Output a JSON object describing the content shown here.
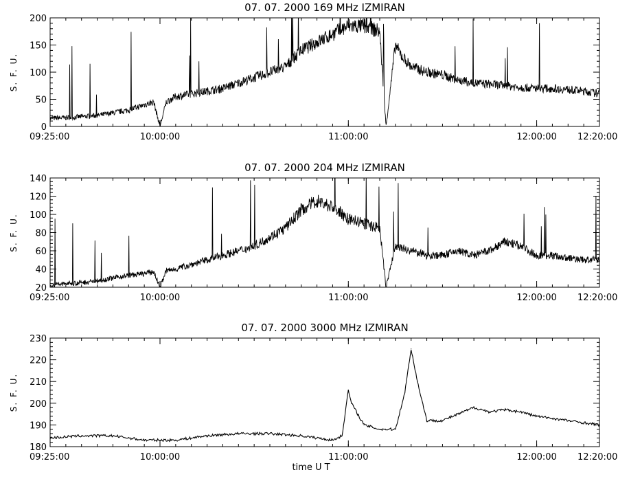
{
  "chart_data": [
    {
      "type": "line",
      "title": "07.  07.  2000      169 MHz    IZMIRAN",
      "ylabel": "S. F. U.",
      "xlabel": "",
      "x_range": [
        "09:25:00",
        "12:20:00"
      ],
      "ylim": [
        0,
        200
      ],
      "yticks": [
        "0",
        "50",
        "100",
        "150",
        "200"
      ],
      "xticks": [
        "09:25:00",
        "10:00:00",
        "11:00:00",
        "12:00:00",
        "12:20:00"
      ],
      "grid": false,
      "series": [
        {
          "x": [
            "09:25",
            "09:30",
            "09:35",
            "09:40",
            "09:45",
            "09:50",
            "09:55",
            "09:58",
            "10:00",
            "10:02",
            "10:05",
            "10:10",
            "10:15",
            "10:20",
            "10:25",
            "10:30",
            "10:35",
            "10:40",
            "10:45",
            "10:50",
            "10:55",
            "11:00",
            "11:05",
            "11:10",
            "11:12",
            "11:15",
            "11:17",
            "11:20",
            "11:25",
            "11:30",
            "11:35",
            "11:40",
            "11:45",
            "11:50",
            "11:55",
            "12:00",
            "12:05",
            "12:10",
            "12:15",
            "12:20"
          ],
          "values": [
            15,
            16,
            18,
            20,
            25,
            30,
            40,
            45,
            0,
            45,
            55,
            60,
            65,
            70,
            80,
            90,
            100,
            110,
            140,
            155,
            170,
            185,
            185,
            175,
            0,
            150,
            130,
            110,
            100,
            95,
            85,
            80,
            78,
            75,
            72,
            70,
            70,
            68,
            65,
            60
          ]
        }
      ]
    },
    {
      "type": "line",
      "title": "07.  07.  2000      204 MHz    IZMIRAN",
      "ylabel": "S. F. U.",
      "xlabel": "",
      "x_range": [
        "09:25:00",
        "12:20:00"
      ],
      "ylim": [
        20,
        140
      ],
      "yticks": [
        "20",
        "40",
        "60",
        "80",
        "100",
        "120",
        "140"
      ],
      "xticks": [
        "09:25:00",
        "10:00:00",
        "11:00:00",
        "12:00:00",
        "12:20:00"
      ],
      "grid": false,
      "series": [
        {
          "x": [
            "09:25",
            "09:30",
            "09:35",
            "09:40",
            "09:45",
            "09:50",
            "09:55",
            "09:58",
            "10:00",
            "10:02",
            "10:05",
            "10:10",
            "10:15",
            "10:20",
            "10:25",
            "10:30",
            "10:35",
            "10:40",
            "10:45",
            "10:50",
            "10:55",
            "11:00",
            "11:05",
            "11:10",
            "11:12",
            "11:15",
            "11:20",
            "11:25",
            "11:30",
            "11:35",
            "11:40",
            "11:45",
            "11:50",
            "11:55",
            "12:00",
            "12:05",
            "12:10",
            "12:15",
            "12:20"
          ],
          "values": [
            22,
            24,
            25,
            27,
            30,
            33,
            35,
            37,
            20,
            38,
            40,
            45,
            50,
            55,
            60,
            65,
            75,
            85,
            105,
            115,
            108,
            95,
            90,
            85,
            20,
            65,
            60,
            55,
            55,
            60,
            55,
            60,
            70,
            65,
            55,
            55,
            52,
            50,
            50
          ]
        }
      ]
    },
    {
      "type": "line",
      "title": "07.  07.  2000      3000 MHz    IZMIRAN",
      "ylabel": "S. F. U.",
      "xlabel": "time  U T",
      "x_range": [
        "09:25:00",
        "12:20:00"
      ],
      "ylim": [
        180,
        230
      ],
      "yticks": [
        "180",
        "190",
        "200",
        "210",
        "220",
        "230"
      ],
      "xticks": [
        "09:25:00",
        "10:00:00",
        "11:00:00",
        "12:00:00",
        "12:20:00"
      ],
      "grid": false,
      "series": [
        {
          "x": [
            "09:25",
            "09:35",
            "09:45",
            "09:55",
            "10:05",
            "10:15",
            "10:25",
            "10:35",
            "10:45",
            "10:55",
            "10:58",
            "11:00",
            "11:01",
            "11:03",
            "11:05",
            "11:10",
            "11:15",
            "11:18",
            "11:20",
            "11:22",
            "11:25",
            "11:30",
            "11:35",
            "11:40",
            "11:45",
            "11:50",
            "11:55",
            "12:00",
            "12:05",
            "12:10",
            "12:15",
            "12:20"
          ],
          "values": [
            184,
            185,
            185,
            183,
            183,
            185,
            186,
            186,
            185,
            183,
            185,
            206,
            200,
            195,
            190,
            188,
            188,
            205,
            225,
            210,
            192,
            192,
            195,
            198,
            196,
            197,
            196,
            194,
            193,
            192,
            191,
            190
          ]
        }
      ]
    }
  ]
}
